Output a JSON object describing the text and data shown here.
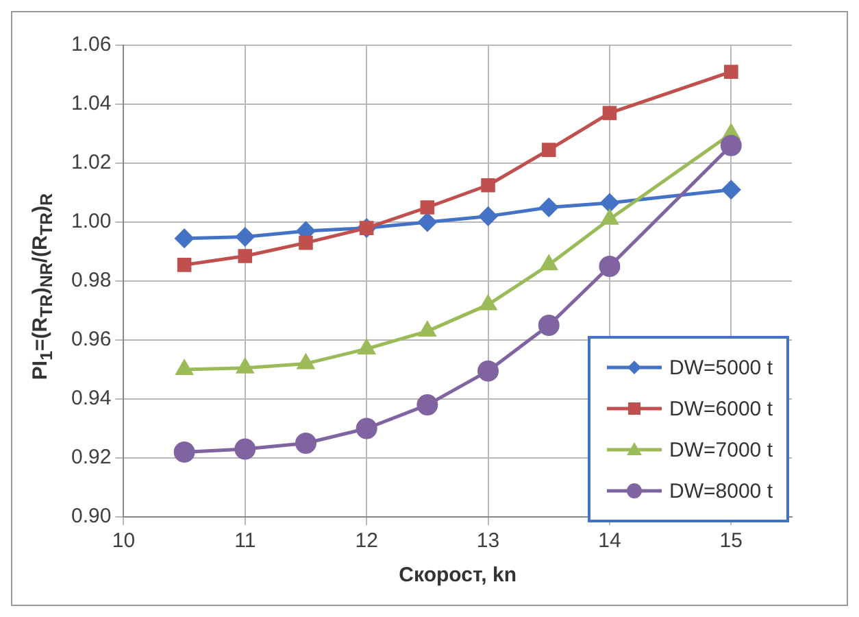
{
  "chart_data": {
    "type": "line",
    "xlabel": "Скорост, kn",
    "ylabel": "PI$_{1}$=(R$_{TR}$)$_{NR}$/(R$_{TR}$)$_{R}$",
    "x": [
      10.5,
      11,
      11.5,
      12,
      12.5,
      13,
      13.5,
      14,
      15
    ],
    "series": [
      {
        "name": "DW=5000 t",
        "color": "#4472c4",
        "marker": "diamond",
        "values": [
          0.9945,
          0.995,
          0.997,
          0.998,
          1.0,
          1.002,
          1.005,
          1.0065,
          1.011
        ]
      },
      {
        "name": "DW=6000 t",
        "color": "#c0504d",
        "marker": "square",
        "values": [
          0.9855,
          0.9885,
          0.993,
          0.998,
          1.005,
          1.0125,
          1.0245,
          1.037,
          1.051
        ]
      },
      {
        "name": "DW=7000 t",
        "color": "#9bbb59",
        "marker": "triangle",
        "values": [
          0.95,
          0.9505,
          0.952,
          0.957,
          0.963,
          0.972,
          0.9855,
          1.001,
          1.03
        ]
      },
      {
        "name": "DW=8000 t",
        "color": "#8064a2",
        "marker": "circle",
        "values": [
          0.922,
          0.923,
          0.925,
          0.93,
          0.938,
          0.9495,
          0.965,
          0.985,
          1.026
        ]
      }
    ],
    "xlim": [
      10,
      15.5
    ],
    "xticks": [
      10,
      11,
      12,
      13,
      14,
      15
    ],
    "ylim": [
      0.9,
      1.06
    ],
    "yticks": [
      {
        "value": 0.9,
        "label": "0.90"
      },
      {
        "value": 0.92,
        "label": "0.92"
      },
      {
        "value": 0.94,
        "label": "0.94"
      },
      {
        "value": 0.96,
        "label": "0.96"
      },
      {
        "value": 0.98,
        "label": "0.98"
      },
      {
        "value": 1.0,
        "label": "1.00"
      },
      {
        "value": 1.02,
        "label": "1.02"
      },
      {
        "value": 1.04,
        "label": "1.04"
      },
      {
        "value": 1.06,
        "label": "1.06"
      }
    ],
    "grid": true,
    "legend": "bottom right"
  }
}
